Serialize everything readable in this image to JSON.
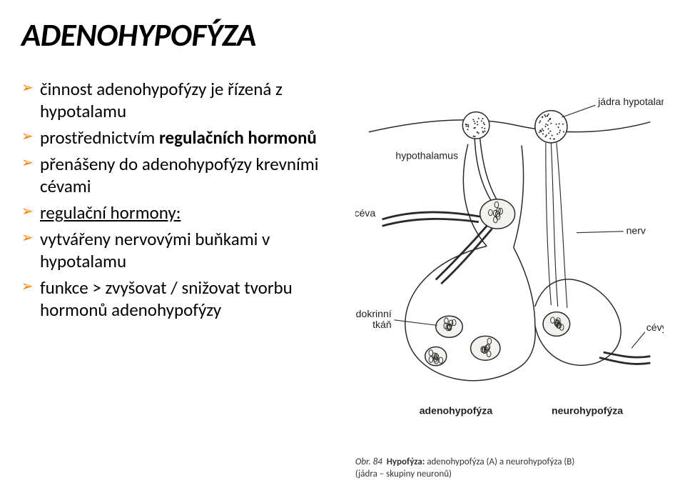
{
  "title": "ADENOHYPOFÝZA",
  "bullets": [
    {
      "parts": [
        "činnost adenohypofýzy je řízená z hypotalamu"
      ]
    },
    {
      "parts_html": "prostřednictvím <b>regulačních hormonů</b>"
    },
    {
      "parts": [
        "přenášeny do adenohypofýzy krevními cévami"
      ]
    },
    {
      "parts_html": "<span class=\"underline\">regulační hormony:</span>"
    },
    {
      "parts": [
        "vytvářeny nervovými buňkami v hypotalamu"
      ]
    },
    {
      "parts": [
        "funkce > zvyšovat / snižovat tvorbu hormonů adenohypofýzy"
      ]
    }
  ],
  "figure": {
    "labels": {
      "jadra": "jádra hypotalamu",
      "hypothalamus": "hypothalamus",
      "ceva": "céva",
      "nerv": "nerv",
      "tkan": "endokrinní\ntkáň",
      "cevy": "cévy",
      "adeno": "adenohypofýza",
      "neuro": "neurohypofýza"
    },
    "caption_prefix": "Obr. 84",
    "caption_main": "Hypofýza:",
    "caption_rest": "adenohypofýza (A) a neurohypofýza (B)",
    "caption_line2": "(jádra – skupiny neuronů)",
    "colors": {
      "line": "#2a2a2a",
      "text": "#222222",
      "bg": "#ffffff",
      "dotfill": "#f4f2ef"
    },
    "line_width": 1.6
  },
  "style": {
    "bullet_color": "#ff8000",
    "title_fontsize": 45,
    "body_fontsize": 25
  }
}
